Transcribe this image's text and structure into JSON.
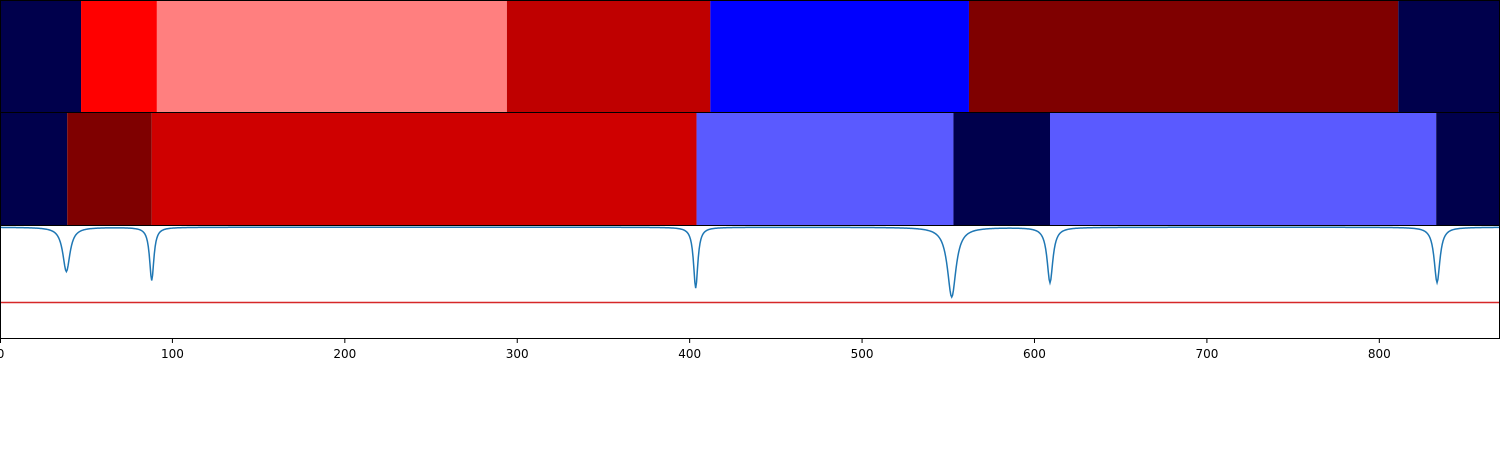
{
  "chart_data": {
    "type": "segmentation-plot",
    "xlim": [
      0,
      870
    ],
    "x_ticks": [
      "0",
      "100",
      "200",
      "300",
      "400",
      "500",
      "600",
      "700",
      "800"
    ],
    "x_tick_values": [
      0,
      100,
      200,
      300,
      400,
      500,
      600,
      700,
      800
    ],
    "tracks": [
      {
        "segments": [
          {
            "start": 0,
            "end": 47,
            "color": "#00004c"
          },
          {
            "start": 47,
            "end": 91,
            "color": "#ff0000"
          },
          {
            "start": 91,
            "end": 294,
            "color": "#ff7f7f"
          },
          {
            "start": 294,
            "end": 412,
            "color": "#bf0000"
          },
          {
            "start": 412,
            "end": 562,
            "color": "#0000ff"
          },
          {
            "start": 562,
            "end": 811,
            "color": "#7f0000"
          },
          {
            "start": 811,
            "end": 870,
            "color": "#00004c"
          }
        ]
      },
      {
        "segments": [
          {
            "start": 0,
            "end": 39,
            "color": "#00004c"
          },
          {
            "start": 39,
            "end": 88,
            "color": "#7f0000"
          },
          {
            "start": 88,
            "end": 404,
            "color": "#cf0000"
          },
          {
            "start": 404,
            "end": 553,
            "color": "#5a5aff"
          },
          {
            "start": 553,
            "end": 609,
            "color": "#00004c"
          },
          {
            "start": 609,
            "end": 833,
            "color": "#5a5aff"
          },
          {
            "start": 833,
            "end": 870,
            "color": "#00004c"
          }
        ]
      }
    ],
    "signal": {
      "color": "#1f77b4",
      "ylim": [
        -1,
        0.02
      ],
      "baseline": 0,
      "dips": [
        {
          "x": 38.5,
          "depth": 0.4,
          "width": 2.5
        },
        {
          "x": 88,
          "depth": 0.48,
          "width": 1.5
        },
        {
          "x": 403.5,
          "depth": 0.55,
          "width": 1.5
        },
        {
          "x": 552,
          "depth": 0.63,
          "width": 3.0
        },
        {
          "x": 609,
          "depth": 0.5,
          "width": 2.0
        },
        {
          "x": 833.5,
          "depth": 0.5,
          "width": 2.0
        }
      ],
      "threshold": {
        "y": -0.68,
        "color": "#d62728"
      }
    }
  }
}
